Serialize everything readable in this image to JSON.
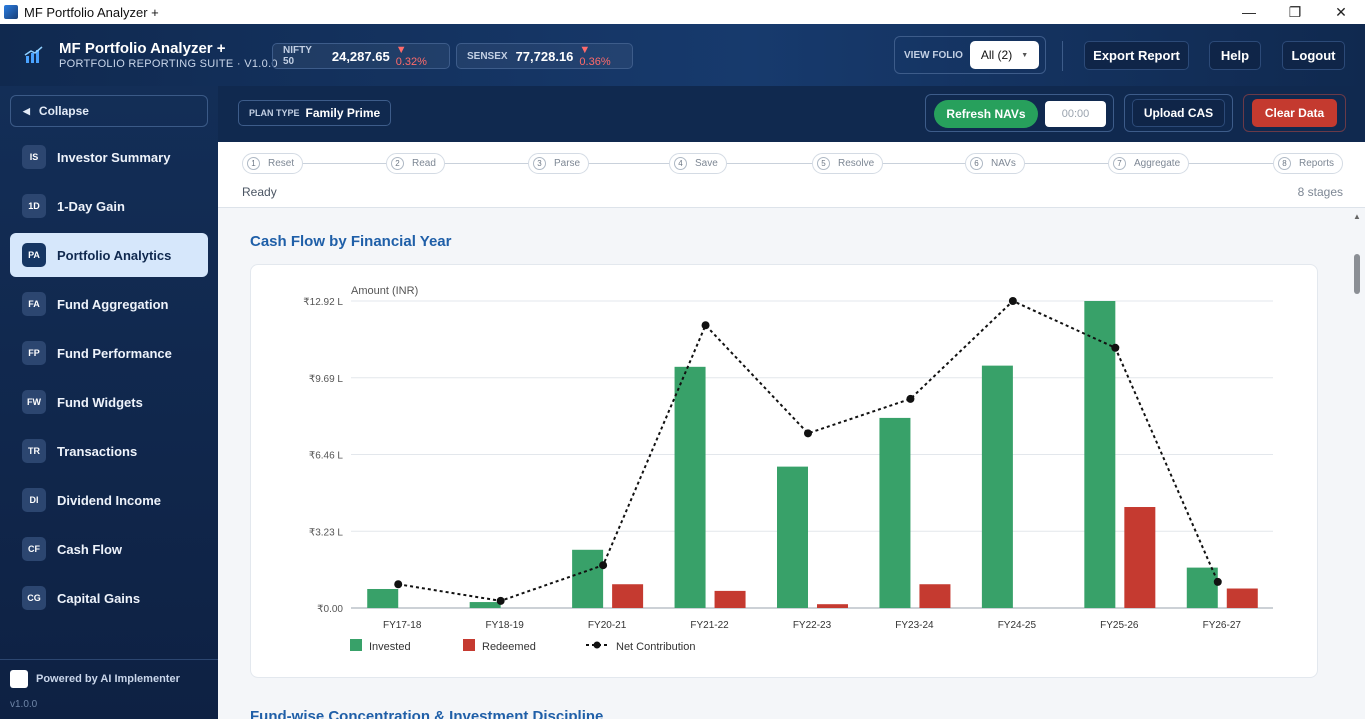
{
  "window": {
    "title": "MF Portfolio Analyzer +",
    "controls": [
      "—",
      "❐",
      "✕"
    ]
  },
  "header": {
    "brand_title": "MF Portfolio Analyzer +",
    "brand_subtitle": "PORTFOLIO REPORTING SUITE · V1.0.0",
    "tickers": [
      {
        "name": "NIFTY 50",
        "value": "24,287.65",
        "change": "▼ 0.32%"
      },
      {
        "name": "SENSEX",
        "value": "77,728.16",
        "change": "▼ 0.36%"
      }
    ],
    "folio_label": "VIEW FOLIO",
    "folio_value": "All (2)",
    "export_label": "Export Report",
    "help_label": "Help",
    "logout_label": "Logout"
  },
  "sidebar": {
    "collapse_label": "Collapse",
    "items": [
      {
        "badge": "IS",
        "label": "Investor Summary",
        "active": false
      },
      {
        "badge": "1D",
        "label": "1-Day Gain",
        "active": false
      },
      {
        "badge": "PA",
        "label": "Portfolio Analytics",
        "active": true
      },
      {
        "badge": "FA",
        "label": "Fund Aggregation",
        "active": false
      },
      {
        "badge": "FP",
        "label": "Fund Performance",
        "active": false
      },
      {
        "badge": "FW",
        "label": "Fund Widgets",
        "active": false
      },
      {
        "badge": "TR",
        "label": "Transactions",
        "active": false
      },
      {
        "badge": "DI",
        "label": "Dividend Income",
        "active": false
      },
      {
        "badge": "CF",
        "label": "Cash Flow",
        "active": false
      },
      {
        "badge": "CG",
        "label": "Capital Gains",
        "active": false
      }
    ],
    "powered_by": "Powered by AI Implementer",
    "version": "v1.0.0"
  },
  "toolbar": {
    "plan_label": "PLAN TYPE",
    "plan_value": "Family Prime",
    "refresh_label": "Refresh NAVs",
    "timer_value": "00:00",
    "upload_label": "Upload CAS",
    "clear_label": "Clear Data"
  },
  "pipeline": {
    "stages": [
      {
        "num": "1",
        "label": "Reset"
      },
      {
        "num": "2",
        "label": "Read"
      },
      {
        "num": "3",
        "label": "Parse"
      },
      {
        "num": "4",
        "label": "Save"
      },
      {
        "num": "5",
        "label": "Resolve"
      },
      {
        "num": "6",
        "label": "NAVs"
      },
      {
        "num": "7",
        "label": "Aggregate"
      },
      {
        "num": "8",
        "label": "Reports"
      }
    ],
    "status": "Ready",
    "stage_count": "8 stages"
  },
  "main": {
    "section_title": "Cash Flow by Financial Year",
    "next_section_title": "Fund-wise Concentration & Investment Discipline"
  },
  "chart_data": {
    "type": "bar",
    "title": "Cash Flow by Financial Year",
    "ylabel": "Amount (INR)",
    "categories": [
      "FY17-18",
      "FY18-19",
      "FY20-21",
      "FY21-22",
      "FY22-23",
      "FY23-24",
      "FY24-25",
      "FY25-26",
      "FY26-27"
    ],
    "y_ticks": [
      "₹0.00",
      "₹3.23 L",
      "₹6.46 L",
      "₹9.69 L",
      "₹12.92 L"
    ],
    "y_tick_values": [
      0,
      3.23,
      6.46,
      9.69,
      12.92
    ],
    "ylim": [
      0,
      12.92
    ],
    "unit": "L",
    "series": [
      {
        "name": "Invested",
        "type": "bar",
        "color": "#38a169",
        "values": [
          0.8,
          0.25,
          2.45,
          10.15,
          5.95,
          8.0,
          10.2,
          12.92,
          1.7
        ]
      },
      {
        "name": "Redeemed",
        "type": "bar",
        "color": "#c53a30",
        "values": [
          0.0,
          0.0,
          1.0,
          0.72,
          0.16,
          1.0,
          0.0,
          4.25,
          0.82
        ]
      },
      {
        "name": "Net Contribution",
        "type": "line",
        "style": "dotted",
        "color": "#111111",
        "values": [
          1.0,
          0.3,
          1.8,
          11.9,
          7.35,
          8.8,
          12.92,
          10.95,
          1.1
        ]
      }
    ],
    "grid": true,
    "legend_position": "bottom-left"
  },
  "colors": {
    "header_bg": "#10294f",
    "accent": "#1f5fa8",
    "refresh": "#27a05c",
    "clear": "#c43a2f",
    "active_nav": "#d6e7fb"
  }
}
